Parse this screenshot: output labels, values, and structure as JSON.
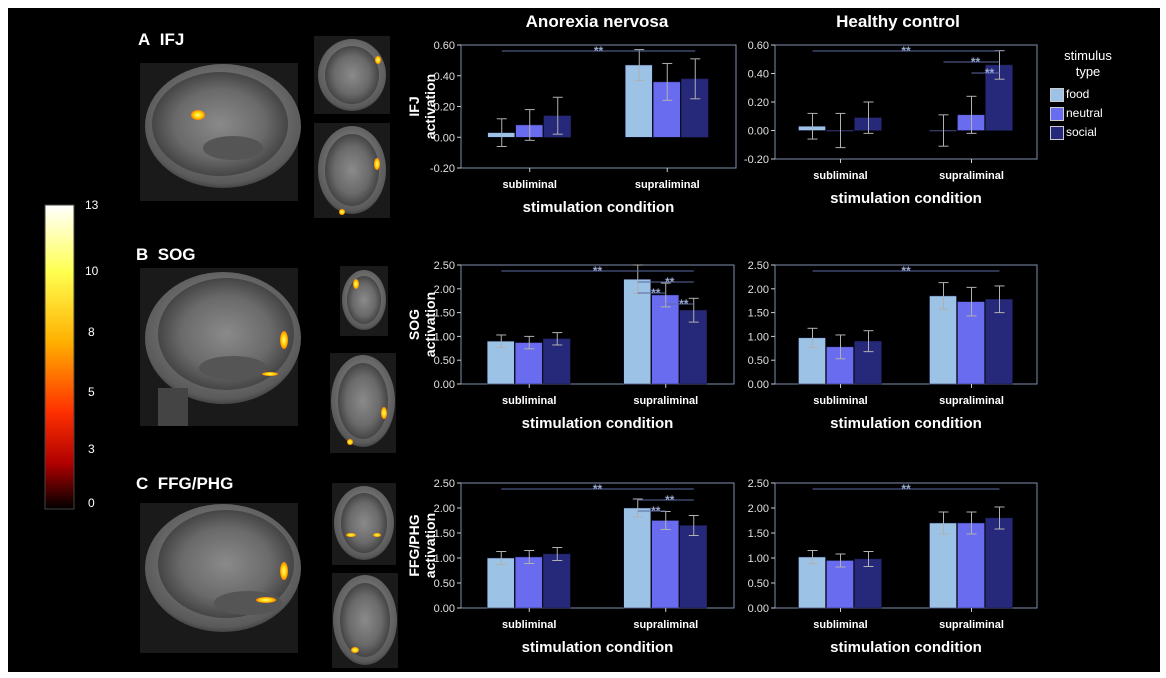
{
  "panels": [
    {
      "letter": "A",
      "region": "IFJ"
    },
    {
      "letter": "B",
      "region": "SOG"
    },
    {
      "letter": "C",
      "region": "FFG/PHG"
    }
  ],
  "columns": [
    "Anorexia nervosa",
    "Healthy control"
  ],
  "colorbar": {
    "ticks": [
      "13",
      "10",
      "8",
      "5",
      "3",
      "0"
    ],
    "colors": [
      "#ffffff",
      "#ffff40",
      "#ffb000",
      "#ff4000",
      "#c00000",
      "#000000"
    ]
  },
  "legend": {
    "title_line1": "stimulus",
    "title_line2": "type",
    "entries": [
      {
        "label": "food",
        "color": "#9cc3e6"
      },
      {
        "label": "neutral",
        "color": "#6a6cf0"
      },
      {
        "label": "social",
        "color": "#26287a"
      }
    ]
  },
  "significance_marker": "**",
  "chart_data": [
    {
      "type": "bar",
      "panel": "IFJ",
      "group": "Anorexia nervosa",
      "categories": [
        "subliminal",
        "supraliminal"
      ],
      "series": [
        {
          "name": "food",
          "values": [
            0.03,
            0.47
          ],
          "errors": [
            0.09,
            0.1
          ]
        },
        {
          "name": "neutral",
          "values": [
            0.08,
            0.36
          ],
          "errors": [
            0.1,
            0.12
          ]
        },
        {
          "name": "social",
          "values": [
            0.14,
            0.38
          ],
          "errors": [
            0.12,
            0.13
          ]
        }
      ],
      "xlabel": "stimulation condition",
      "ylabel": "IFJ activation",
      "ylim": [
        -0.2,
        0.6
      ],
      "yticks": [
        "-0.20",
        "0.00",
        "0.20",
        "0.40",
        "0.60"
      ]
    },
    {
      "type": "bar",
      "panel": "IFJ",
      "group": "Healthy control",
      "categories": [
        "subliminal",
        "supraliminal"
      ],
      "series": [
        {
          "name": "food",
          "values": [
            0.03,
            0.0
          ],
          "errors": [
            0.09,
            0.11
          ]
        },
        {
          "name": "neutral",
          "values": [
            0.0,
            0.11
          ],
          "errors": [
            0.12,
            0.13
          ]
        },
        {
          "name": "social",
          "values": [
            0.09,
            0.46
          ],
          "errors": [
            0.11,
            0.1
          ]
        }
      ],
      "xlabel": "stimulation condition",
      "ylabel": "",
      "ylim": [
        -0.2,
        0.6
      ],
      "yticks": [
        "-0.20",
        "0.00",
        "0.20",
        "0.40",
        "0.60"
      ]
    },
    {
      "type": "bar",
      "panel": "SOG",
      "group": "Anorexia nervosa",
      "categories": [
        "subliminal",
        "supraliminal"
      ],
      "series": [
        {
          "name": "food",
          "values": [
            0.9,
            2.2
          ],
          "errors": [
            0.13,
            0.3
          ]
        },
        {
          "name": "neutral",
          "values": [
            0.87,
            1.87
          ],
          "errors": [
            0.13,
            0.25
          ]
        },
        {
          "name": "social",
          "values": [
            0.95,
            1.55
          ],
          "errors": [
            0.13,
            0.25
          ]
        }
      ],
      "xlabel": "stimulation condition",
      "ylabel": "SOG activation",
      "ylim": [
        0,
        2.5
      ],
      "yticks": [
        "0.00",
        "0.50",
        "1.00",
        "1.50",
        "2.00",
        "2.50"
      ]
    },
    {
      "type": "bar",
      "panel": "SOG",
      "group": "Healthy control",
      "categories": [
        "subliminal",
        "supraliminal"
      ],
      "series": [
        {
          "name": "food",
          "values": [
            0.97,
            1.85
          ],
          "errors": [
            0.2,
            0.28
          ]
        },
        {
          "name": "neutral",
          "values": [
            0.78,
            1.73
          ],
          "errors": [
            0.25,
            0.3
          ]
        },
        {
          "name": "social",
          "values": [
            0.9,
            1.78
          ],
          "errors": [
            0.22,
            0.28
          ]
        }
      ],
      "xlabel": "stimulation condition",
      "ylabel": "",
      "ylim": [
        0,
        2.5
      ],
      "yticks": [
        "0.00",
        "0.50",
        "1.00",
        "1.50",
        "2.00",
        "2.50"
      ]
    },
    {
      "type": "bar",
      "panel": "FFG/PHG",
      "group": "Anorexia nervosa",
      "categories": [
        "subliminal",
        "supraliminal"
      ],
      "series": [
        {
          "name": "food",
          "values": [
            1.0,
            2.0
          ],
          "errors": [
            0.13,
            0.18
          ]
        },
        {
          "name": "neutral",
          "values": [
            1.02,
            1.75
          ],
          "errors": [
            0.13,
            0.18
          ]
        },
        {
          "name": "social",
          "values": [
            1.08,
            1.65
          ],
          "errors": [
            0.13,
            0.2
          ]
        }
      ],
      "xlabel": "stimulation condition",
      "ylabel": "FFG/PHG activation",
      "ylim": [
        0,
        2.5
      ],
      "yticks": [
        "0.00",
        "0.50",
        "1.00",
        "1.50",
        "2.00",
        "2.50"
      ]
    },
    {
      "type": "bar",
      "panel": "FFG/PHG",
      "group": "Healthy control",
      "categories": [
        "subliminal",
        "supraliminal"
      ],
      "series": [
        {
          "name": "food",
          "values": [
            1.02,
            1.7
          ],
          "errors": [
            0.13,
            0.22
          ]
        },
        {
          "name": "neutral",
          "values": [
            0.95,
            1.7
          ],
          "errors": [
            0.13,
            0.22
          ]
        },
        {
          "name": "social",
          "values": [
            0.98,
            1.8
          ],
          "errors": [
            0.15,
            0.22
          ]
        }
      ],
      "xlabel": "stimulation condition",
      "ylabel": "",
      "ylim": [
        0,
        2.5
      ],
      "yticks": [
        "0.00",
        "0.50",
        "1.00",
        "1.50",
        "2.00",
        "2.50"
      ]
    }
  ]
}
